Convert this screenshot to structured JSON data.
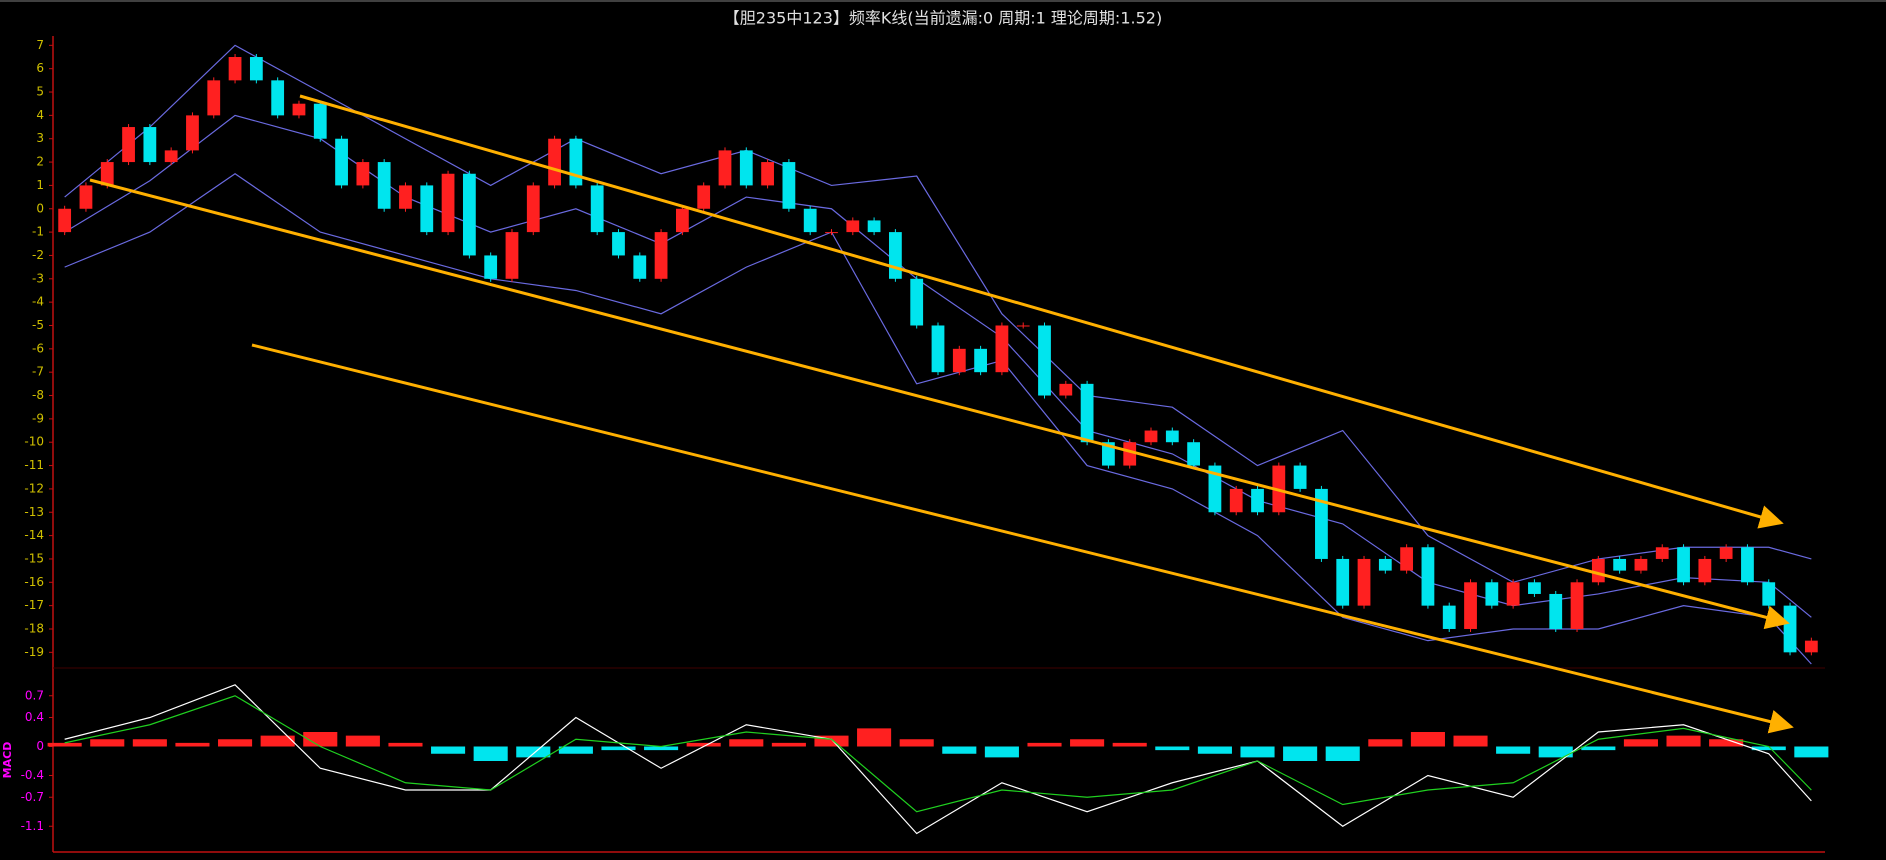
{
  "chart_data": [
    {
      "type": "candlestick",
      "title": "【胆235中123】频率K线(当前遗漏:0 周期:1 理论周期:1.52)",
      "up_color": "#ff2020",
      "down_color": "#00e5ee",
      "open": [
        -1,
        0,
        1,
        2,
        3.5,
        2,
        2.5,
        4,
        5.5,
        6.5,
        5.5,
        4,
        4.5,
        3,
        1,
        2,
        0,
        1,
        -1,
        1.5,
        -2,
        -3,
        -1,
        1,
        3,
        1,
        -1,
        -2,
        -3,
        -1,
        0,
        1,
        2.5,
        1,
        2,
        0,
        -1,
        -1,
        -0.5,
        -1,
        -3,
        -5,
        -7,
        -6,
        -7,
        -5,
        -5,
        -8,
        -7.5,
        -10,
        -11,
        -10,
        -9.5,
        -10,
        -11,
        -13,
        -12,
        -13,
        -11,
        -12,
        -15,
        -17,
        -15,
        -15.5,
        -14.5,
        -17,
        -18,
        -16,
        -17,
        -16,
        -16.5,
        -18,
        -16,
        -15,
        -15.5,
        -15,
        -14.5,
        -16,
        -15,
        -14.5,
        -16,
        -17,
        -19
      ],
      "close": [
        0,
        1,
        2,
        3.5,
        2,
        2.5,
        4,
        5.5,
        6.5,
        5.5,
        4,
        4.5,
        3,
        1,
        2,
        0,
        1,
        -1,
        1.5,
        -2,
        -3,
        -1,
        1,
        3,
        1,
        -1,
        -2,
        -3,
        -1,
        0,
        1,
        2.5,
        1,
        2,
        0,
        -1,
        -1,
        -0.5,
        -1,
        -3,
        -5,
        -7,
        -6,
        -7,
        -5,
        -5,
        -8,
        -7.5,
        -10,
        -11,
        -10,
        -9.5,
        -10,
        -11,
        -13,
        -12,
        -13,
        -11,
        -12,
        -15,
        -17,
        -15,
        -15.5,
        -14.5,
        -17,
        -18,
        -16,
        -17,
        -16,
        -16.5,
        -18,
        -16,
        -15,
        -15.5,
        -15,
        -14.5,
        -16,
        -15,
        -14.5,
        -16,
        -17,
        -19,
        -18.5
      ],
      "bands": [
        {
          "color": "#6a6ae0",
          "x": [
            0,
            4,
            8,
            12,
            16,
            20,
            24,
            28,
            32,
            36,
            40,
            44,
            48,
            52,
            56,
            60,
            64,
            68,
            72,
            76,
            80,
            82
          ],
          "values": [
            0.5,
            3.5,
            7,
            5,
            3,
            1,
            3,
            1.5,
            2.5,
            1,
            1.4,
            -4.5,
            -8,
            -8.5,
            -11,
            -9.5,
            -14,
            -16,
            -15,
            -14.5,
            -14.5,
            -15
          ]
        },
        {
          "color": "#6a6ae0",
          "x": [
            0,
            4,
            8,
            12,
            16,
            20,
            24,
            28,
            32,
            36,
            40,
            44,
            48,
            52,
            56,
            60,
            64,
            68,
            72,
            76,
            80,
            82
          ],
          "values": [
            -1,
            1.2,
            4,
            3,
            0.5,
            -1,
            0,
            -1.5,
            0.5,
            0,
            -3,
            -5.5,
            -9.5,
            -10.5,
            -12.5,
            -13.5,
            -16,
            -17,
            -16.5,
            -15.8,
            -16,
            -17.5
          ]
        },
        {
          "color": "#6a6ae0",
          "x": [
            0,
            4,
            8,
            12,
            16,
            20,
            24,
            28,
            32,
            36,
            40,
            44,
            48,
            52,
            56,
            60,
            64,
            68,
            72,
            76,
            80,
            82
          ],
          "values": [
            -2.5,
            -1,
            1.5,
            -1,
            -2,
            -3,
            -3.5,
            -4.5,
            -2.5,
            -1,
            -7.5,
            -6.5,
            -11,
            -12,
            -14,
            -17.5,
            -18.5,
            -18,
            -18,
            -17,
            -17.5,
            -19.5
          ]
        }
      ],
      "ylim": [
        -19.5,
        7.4
      ],
      "yticks": [
        7,
        6,
        5,
        4,
        3,
        2,
        1,
        0,
        -1,
        -2,
        -3,
        -4,
        -5,
        -6,
        -7,
        -8,
        -9,
        -10,
        -11,
        -12,
        -13,
        -14,
        -15,
        -16,
        -17,
        -18,
        -19
      ]
    },
    {
      "type": "macd",
      "label": "MACD",
      "up_color": "#ff2020",
      "down_color": "#00e5ee",
      "histogram": {
        "x": [
          0,
          2,
          4,
          6,
          8,
          10,
          12,
          14,
          16,
          18,
          20,
          22,
          24,
          26,
          28,
          30,
          32,
          34,
          36,
          38,
          40,
          42,
          44,
          46,
          48,
          50,
          52,
          54,
          56,
          58,
          60,
          62,
          64,
          66,
          68,
          70,
          72,
          74,
          76,
          78,
          80,
          82
        ],
        "values": [
          0.05,
          0.1,
          0.1,
          0.05,
          0.1,
          0.15,
          0.2,
          0.15,
          0.05,
          -0.1,
          -0.2,
          -0.15,
          -0.1,
          -0.05,
          -0.05,
          0.05,
          0.1,
          0.05,
          0.15,
          0.25,
          0.1,
          -0.1,
          -0.15,
          0.05,
          0.1,
          0.05,
          -0.05,
          -0.1,
          -0.15,
          -0.2,
          -0.2,
          0.1,
          0.2,
          0.15,
          -0.1,
          -0.15,
          -0.05,
          0.1,
          0.15,
          0.1,
          -0.05,
          -0.15
        ]
      },
      "series": [
        {
          "color": "#ffffff",
          "x": [
            0,
            4,
            8,
            12,
            16,
            20,
            24,
            28,
            32,
            36,
            40,
            44,
            48,
            52,
            56,
            60,
            64,
            68,
            72,
            76,
            80,
            82
          ],
          "values": [
            0.1,
            0.4,
            0.85,
            -0.3,
            -0.6,
            -0.6,
            0.4,
            -0.3,
            0.3,
            0.1,
            -1.2,
            -0.5,
            -0.9,
            -0.5,
            -0.2,
            -1.1,
            -0.4,
            -0.7,
            0.2,
            0.3,
            -0.1,
            -0.75
          ]
        },
        {
          "color": "#20d020",
          "x": [
            0,
            4,
            8,
            12,
            16,
            20,
            24,
            28,
            32,
            36,
            40,
            44,
            48,
            52,
            56,
            60,
            64,
            68,
            72,
            76,
            80,
            82
          ],
          "values": [
            0.05,
            0.3,
            0.7,
            0,
            -0.5,
            -0.6,
            0.1,
            0,
            0.2,
            0.1,
            -0.9,
            -0.6,
            -0.7,
            -0.6,
            -0.2,
            -0.8,
            -0.6,
            -0.5,
            0.1,
            0.25,
            0,
            -0.6
          ]
        }
      ],
      "ylim": [
        -1.4,
        1.0
      ],
      "yticks": [
        0.7,
        0.4,
        0,
        -0.4,
        -0.7,
        -1.1
      ]
    }
  ]
}
